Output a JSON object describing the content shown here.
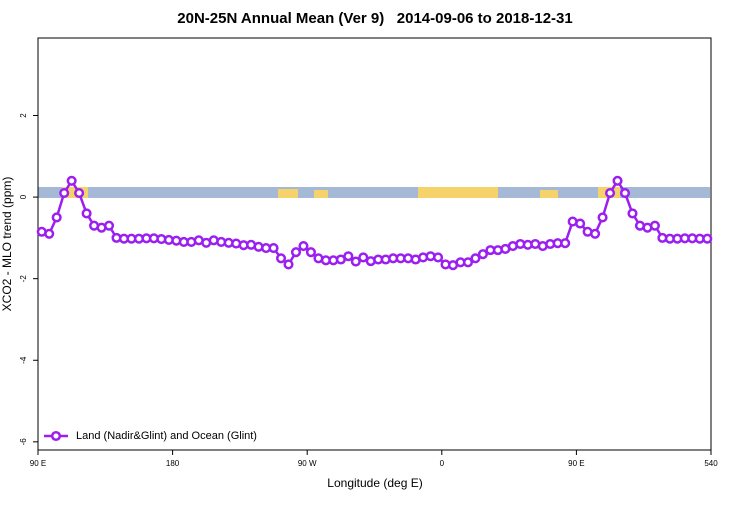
{
  "chart_data": {
    "type": "line",
    "title": "20N-25N Annual Mean (Ver 9)   2014-09-06 to 2018-12-31",
    "xlabel": "Longitude (deg E)",
    "ylabel": "XCO2 - MLO trend (ppm)",
    "x": [
      92.5,
      97.5,
      102.5,
      107.5,
      112.5,
      117.5,
      122.5,
      127.5,
      132.5,
      137.5,
      142.5,
      147.5,
      152.5,
      157.5,
      162.5,
      167.5,
      172.5,
      177.5,
      182.5,
      187.5,
      192.5,
      197.5,
      202.5,
      207.5,
      212.5,
      217.5,
      222.5,
      227.5,
      232.5,
      237.5,
      242.5,
      247.5,
      252.5,
      257.5,
      262.5,
      267.5,
      272.5,
      277.5,
      282.5,
      287.5,
      292.5,
      297.5,
      302.5,
      307.5,
      312.5,
      317.5,
      322.5,
      327.5,
      332.5,
      337.5,
      342.5,
      347.5,
      352.5,
      357.5,
      362.5,
      367.5,
      372.5,
      377.5,
      382.5,
      387.5,
      392.5,
      397.5,
      402.5,
      407.5,
      412.5,
      417.5,
      422.5,
      427.5,
      432.5,
      437.5,
      442.5,
      447.5,
      452.5,
      457.5,
      462.5,
      467.5,
      472.5,
      477.5,
      482.5,
      487.5,
      492.5,
      497.5,
      502.5,
      507.5,
      512.5,
      517.5,
      522.5,
      527.5,
      532.5,
      537.5
    ],
    "series": [
      {
        "name": "Land (Nadir&Glint) and Ocean (Glint)",
        "color": "#9b1ff0",
        "values": [
          -0.85,
          -0.9,
          -0.5,
          0.1,
          0.4,
          0.1,
          -0.4,
          -0.7,
          -0.75,
          -0.7,
          -1.0,
          -1.02,
          -1.02,
          -1.02,
          -1.01,
          -1.01,
          -1.03,
          -1.05,
          -1.07,
          -1.1,
          -1.1,
          -1.06,
          -1.12,
          -1.06,
          -1.1,
          -1.12,
          -1.14,
          -1.18,
          -1.17,
          -1.22,
          -1.25,
          -1.25,
          -1.5,
          -1.65,
          -1.35,
          -1.2,
          -1.35,
          -1.5,
          -1.55,
          -1.55,
          -1.53,
          -1.45,
          -1.58,
          -1.48,
          -1.57,
          -1.53,
          -1.53,
          -1.5,
          -1.5,
          -1.5,
          -1.53,
          -1.48,
          -1.45,
          -1.48,
          -1.65,
          -1.67,
          -1.6,
          -1.6,
          -1.5,
          -1.4,
          -1.3,
          -1.3,
          -1.27,
          -1.2,
          -1.15,
          -1.17,
          -1.15,
          -1.2,
          -1.15,
          -1.13,
          -1.13,
          -0.6,
          -0.65,
          -0.85,
          -0.9,
          -0.5,
          0.1,
          0.4,
          0.1,
          -0.4,
          -0.7,
          -0.75,
          -0.7,
          -1.0,
          -1.02,
          -1.02,
          -1.01,
          -1.01,
          -1.02,
          -1.02
        ]
      }
    ],
    "xlim": [
      90,
      540
    ],
    "xticks": [
      {
        "value": 90,
        "label": "90 E"
      },
      180,
      {
        "value": 270,
        "label": "90 W"
      },
      {
        "value": 360,
        "label": "0"
      },
      {
        "value": 450,
        "label": "90 E"
      },
      540
    ],
    "ylim": [
      -6.2,
      3.9
    ],
    "yticks": [
      -6,
      -4,
      -2,
      0,
      2
    ],
    "legend": "bottom-left"
  }
}
